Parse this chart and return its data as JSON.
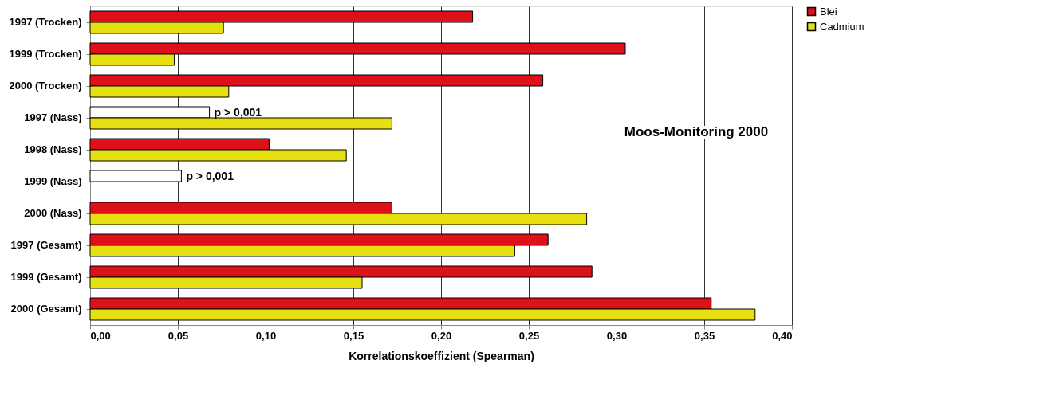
{
  "chart_data": {
    "type": "bar",
    "orientation": "horizontal",
    "categories": [
      "1997 (Trocken)",
      "1999 (Trocken)",
      "2000 (Trocken)",
      "1997 (Nass)",
      "1998 (Nass)",
      "1999 (Nass)",
      "2000 (Nass)",
      "1997 (Gesamt)",
      "1999 (Gesamt)",
      "2000 (Gesamt)"
    ],
    "series": [
      {
        "name": "Blei",
        "color": "#e0101a",
        "colors": [
          "#e0101a",
          "#e0101a",
          "#e0101a",
          "#ffffff",
          "#e0101a",
          "#ffffff",
          "#e0101a",
          "#e0101a",
          "#e0101a",
          "#e0101a"
        ],
        "values": [
          0.218,
          0.305,
          0.258,
          0.068,
          0.102,
          0.052,
          0.172,
          0.261,
          0.286,
          0.354
        ]
      },
      {
        "name": "Cadmium",
        "color": "#e6e010",
        "values": [
          0.076,
          0.048,
          0.079,
          0.172,
          0.146,
          null,
          0.283,
          0.242,
          0.155,
          0.379
        ]
      }
    ],
    "xlabel": "Korrelationskoeffizient (Spearman)",
    "xlim": [
      0,
      0.4
    ],
    "xticks": [
      {
        "value": 0,
        "label": "0,00"
      },
      {
        "value": 0.05,
        "label": "0,05"
      },
      {
        "value": 0.1,
        "label": "0,10"
      },
      {
        "value": 0.15,
        "label": "0,15"
      },
      {
        "value": 0.2,
        "label": "0,20"
      },
      {
        "value": 0.25,
        "label": "0,25"
      },
      {
        "value": 0.3,
        "label": "0,30"
      },
      {
        "value": 0.35,
        "label": "0,35"
      },
      {
        "value": 0.4,
        "label": "0,40"
      }
    ],
    "grid": "x",
    "legend": "right",
    "annotations": [
      {
        "text": "p > 0,001",
        "x": 0.068,
        "y": "1997 (Nass)"
      },
      {
        "text": "p > 0,001",
        "x": 0.052,
        "y": "1999 (Nass)"
      },
      "Moos-Monitoring 2000"
    ]
  }
}
